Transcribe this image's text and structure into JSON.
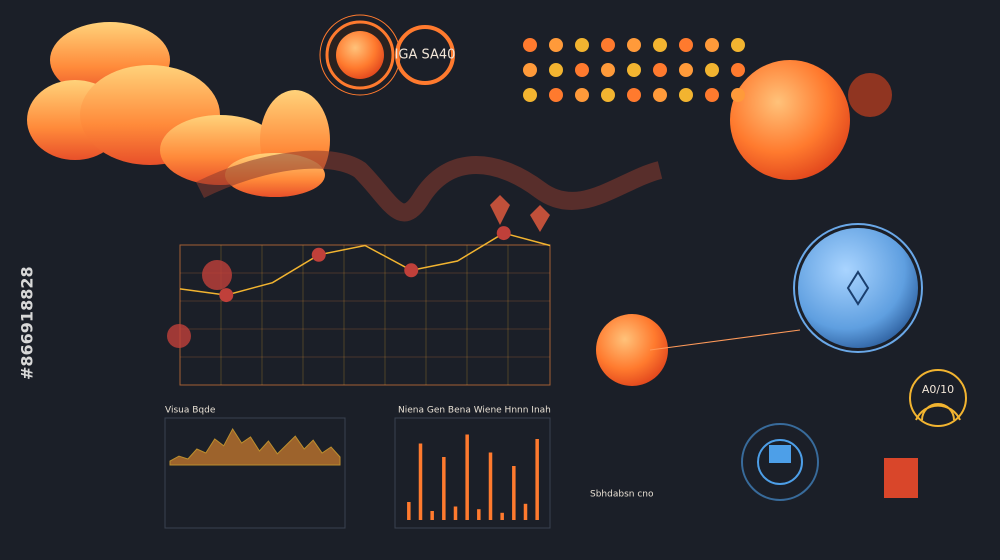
{
  "badge": {
    "label": "IGA SA40"
  },
  "gauge": {
    "label": "A0/10"
  },
  "line_chart": {
    "values": [
      62,
      58,
      66,
      84,
      90,
      74,
      80,
      98,
      90
    ]
  },
  "panels": [
    {
      "title": "Visua Bqde",
      "values": [
        10,
        22,
        15,
        40,
        30,
        65,
        48,
        90,
        55,
        70,
        35,
        60,
        28,
        50,
        72,
        40,
        62,
        30,
        45,
        20
      ]
    },
    {
      "title": "Niena Gen Bena Wiene Hnnn Inah",
      "values": [
        20,
        85,
        10,
        70,
        15,
        95,
        12,
        75,
        8,
        60,
        18,
        90
      ]
    }
  ],
  "notes": {
    "list_title": "Sbhdabsn cno"
  },
  "watermark": {
    "id": "#866918828"
  }
}
